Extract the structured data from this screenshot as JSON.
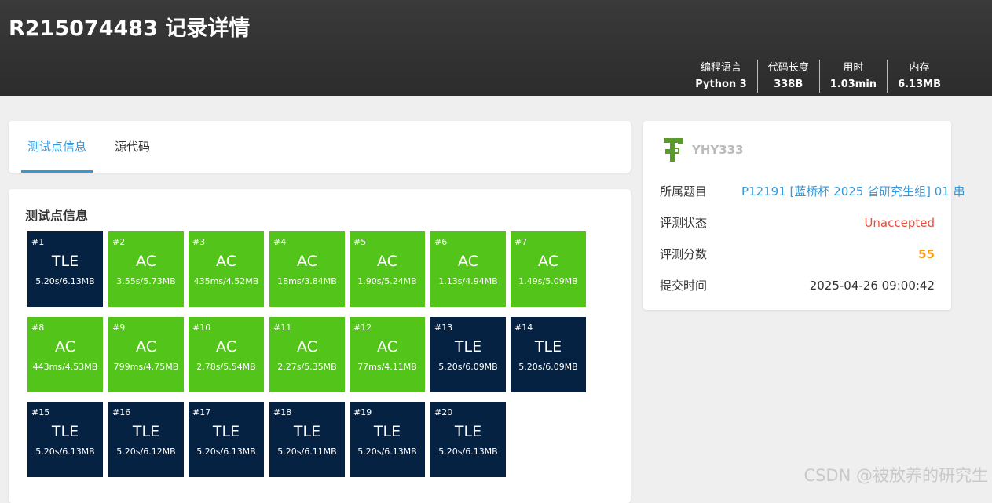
{
  "header": {
    "title": "R215074483 记录详情",
    "stats": [
      {
        "label": "编程语言",
        "value": "Python 3"
      },
      {
        "label": "代码长度",
        "value": "338B"
      },
      {
        "label": "用时",
        "value": "1.03min"
      },
      {
        "label": "内存",
        "value": "6.13MB"
      }
    ]
  },
  "tabs": [
    {
      "label": "测试点信息",
      "active": true
    },
    {
      "label": "源代码",
      "active": false
    }
  ],
  "tests": {
    "title": "测试点信息",
    "cases": [
      {
        "id": "#1",
        "status": "TLE",
        "info": "5.20s/6.13MB"
      },
      {
        "id": "#2",
        "status": "AC",
        "info": "3.55s/5.73MB"
      },
      {
        "id": "#3",
        "status": "AC",
        "info": "435ms/4.52MB"
      },
      {
        "id": "#4",
        "status": "AC",
        "info": "18ms/3.84MB"
      },
      {
        "id": "#5",
        "status": "AC",
        "info": "1.90s/5.24MB"
      },
      {
        "id": "#6",
        "status": "AC",
        "info": "1.13s/4.94MB"
      },
      {
        "id": "#7",
        "status": "AC",
        "info": "1.49s/5.09MB"
      },
      {
        "id": "#8",
        "status": "AC",
        "info": "443ms/4.53MB"
      },
      {
        "id": "#9",
        "status": "AC",
        "info": "799ms/4.75MB"
      },
      {
        "id": "#10",
        "status": "AC",
        "info": "2.78s/5.54MB"
      },
      {
        "id": "#11",
        "status": "AC",
        "info": "2.27s/5.35MB"
      },
      {
        "id": "#12",
        "status": "AC",
        "info": "77ms/4.11MB"
      },
      {
        "id": "#13",
        "status": "TLE",
        "info": "5.20s/6.09MB"
      },
      {
        "id": "#14",
        "status": "TLE",
        "info": "5.20s/6.09MB"
      },
      {
        "id": "#15",
        "status": "TLE",
        "info": "5.20s/6.13MB"
      },
      {
        "id": "#16",
        "status": "TLE",
        "info": "5.20s/6.12MB"
      },
      {
        "id": "#17",
        "status": "TLE",
        "info": "5.20s/6.13MB"
      },
      {
        "id": "#18",
        "status": "TLE",
        "info": "5.20s/6.11MB"
      },
      {
        "id": "#19",
        "status": "TLE",
        "info": "5.20s/6.13MB"
      },
      {
        "id": "#20",
        "status": "TLE",
        "info": "5.20s/6.13MB"
      }
    ]
  },
  "side": {
    "username": "YHY333",
    "avatar_icon": "user-avatar-icon",
    "rows": [
      {
        "key": "所属题目",
        "value": "P12191 [蓝桥杯 2025 省研究生组] 01 串"
      },
      {
        "key": "评测状态",
        "value": "Unaccepted"
      },
      {
        "key": "评测分数",
        "value": "55"
      },
      {
        "key": "提交时间",
        "value": "2025-04-26 09:00:42"
      }
    ]
  },
  "watermark": "CSDN @被放养的研究生",
  "colors": {
    "ac": "#52c41a",
    "tle": "#052242",
    "accent": "#3498db",
    "unaccepted": "#e74c3c",
    "score": "#f39c12"
  }
}
